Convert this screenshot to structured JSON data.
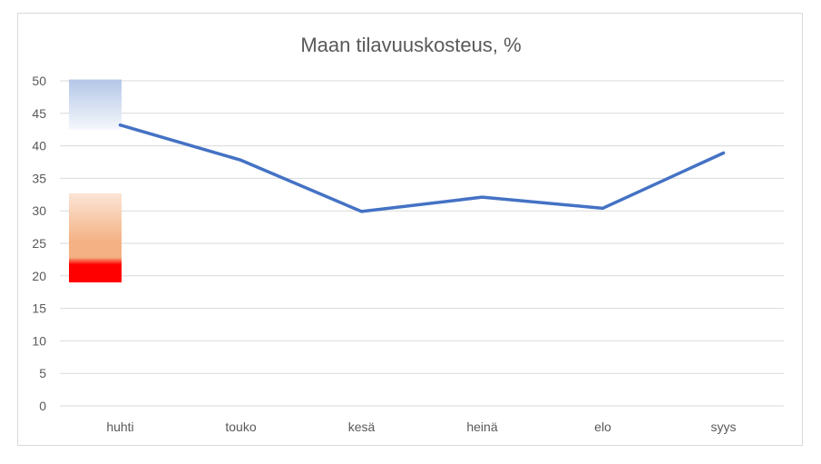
{
  "chart_data": {
    "type": "line",
    "title": "Maan tilavuuskosteus, %",
    "xlabel": "",
    "ylabel": "",
    "categories": [
      "huhti",
      "touko",
      "kesä",
      "heinä",
      "elo",
      "syys"
    ],
    "series": [
      {
        "values": [
          43.2,
          37.8,
          29.9,
          32.1,
          30.4,
          38.9
        ],
        "color": "#4472c4"
      }
    ],
    "ylim": [
      0,
      50
    ],
    "yticks": [
      0,
      5,
      10,
      15,
      20,
      25,
      30,
      35,
      40,
      45,
      50
    ],
    "grid": true,
    "legend": "none",
    "bands": [
      {
        "from": 42.5,
        "to": 50.2,
        "colors": [
          "#b4c7e7",
          "#f4f7fc"
        ]
      },
      {
        "from": 19,
        "to": 32.7,
        "colors": [
          "#fbe5d6",
          "#f4b183",
          "#ff0000"
        ]
      }
    ]
  }
}
